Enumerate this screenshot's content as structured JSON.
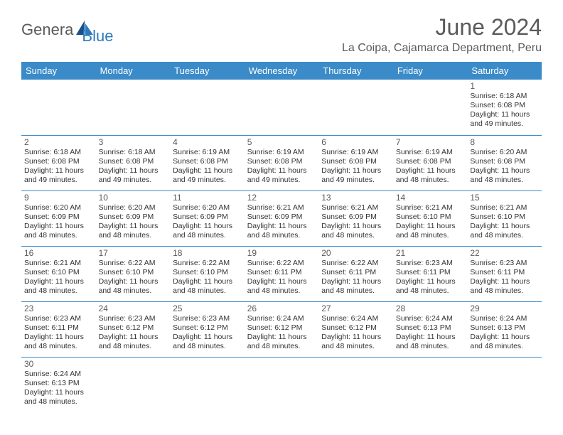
{
  "brand": {
    "text1": "Genera",
    "text2": "Blue"
  },
  "title": "June 2024",
  "location": "La Coipa, Cajamarca Department, Peru",
  "colors": {
    "header_bg": "#3b8bc9",
    "header_text": "#ffffff",
    "body_text": "#333333",
    "brand_grey": "#5a5a5a",
    "brand_blue": "#2b7bbf",
    "cell_border": "#3b8bc9"
  },
  "weekdays": [
    "Sunday",
    "Monday",
    "Tuesday",
    "Wednesday",
    "Thursday",
    "Friday",
    "Saturday"
  ],
  "startOffset": 6,
  "days": [
    {
      "n": "1",
      "sunrise": "6:18 AM",
      "sunset": "6:08 PM",
      "daylight": "11 hours and 49 minutes."
    },
    {
      "n": "2",
      "sunrise": "6:18 AM",
      "sunset": "6:08 PM",
      "daylight": "11 hours and 49 minutes."
    },
    {
      "n": "3",
      "sunrise": "6:18 AM",
      "sunset": "6:08 PM",
      "daylight": "11 hours and 49 minutes."
    },
    {
      "n": "4",
      "sunrise": "6:19 AM",
      "sunset": "6:08 PM",
      "daylight": "11 hours and 49 minutes."
    },
    {
      "n": "5",
      "sunrise": "6:19 AM",
      "sunset": "6:08 PM",
      "daylight": "11 hours and 49 minutes."
    },
    {
      "n": "6",
      "sunrise": "6:19 AM",
      "sunset": "6:08 PM",
      "daylight": "11 hours and 49 minutes."
    },
    {
      "n": "7",
      "sunrise": "6:19 AM",
      "sunset": "6:08 PM",
      "daylight": "11 hours and 48 minutes."
    },
    {
      "n": "8",
      "sunrise": "6:20 AM",
      "sunset": "6:08 PM",
      "daylight": "11 hours and 48 minutes."
    },
    {
      "n": "9",
      "sunrise": "6:20 AM",
      "sunset": "6:09 PM",
      "daylight": "11 hours and 48 minutes."
    },
    {
      "n": "10",
      "sunrise": "6:20 AM",
      "sunset": "6:09 PM",
      "daylight": "11 hours and 48 minutes."
    },
    {
      "n": "11",
      "sunrise": "6:20 AM",
      "sunset": "6:09 PM",
      "daylight": "11 hours and 48 minutes."
    },
    {
      "n": "12",
      "sunrise": "6:21 AM",
      "sunset": "6:09 PM",
      "daylight": "11 hours and 48 minutes."
    },
    {
      "n": "13",
      "sunrise": "6:21 AM",
      "sunset": "6:09 PM",
      "daylight": "11 hours and 48 minutes."
    },
    {
      "n": "14",
      "sunrise": "6:21 AM",
      "sunset": "6:10 PM",
      "daylight": "11 hours and 48 minutes."
    },
    {
      "n": "15",
      "sunrise": "6:21 AM",
      "sunset": "6:10 PM",
      "daylight": "11 hours and 48 minutes."
    },
    {
      "n": "16",
      "sunrise": "6:21 AM",
      "sunset": "6:10 PM",
      "daylight": "11 hours and 48 minutes."
    },
    {
      "n": "17",
      "sunrise": "6:22 AM",
      "sunset": "6:10 PM",
      "daylight": "11 hours and 48 minutes."
    },
    {
      "n": "18",
      "sunrise": "6:22 AM",
      "sunset": "6:10 PM",
      "daylight": "11 hours and 48 minutes."
    },
    {
      "n": "19",
      "sunrise": "6:22 AM",
      "sunset": "6:11 PM",
      "daylight": "11 hours and 48 minutes."
    },
    {
      "n": "20",
      "sunrise": "6:22 AM",
      "sunset": "6:11 PM",
      "daylight": "11 hours and 48 minutes."
    },
    {
      "n": "21",
      "sunrise": "6:23 AM",
      "sunset": "6:11 PM",
      "daylight": "11 hours and 48 minutes."
    },
    {
      "n": "22",
      "sunrise": "6:23 AM",
      "sunset": "6:11 PM",
      "daylight": "11 hours and 48 minutes."
    },
    {
      "n": "23",
      "sunrise": "6:23 AM",
      "sunset": "6:11 PM",
      "daylight": "11 hours and 48 minutes."
    },
    {
      "n": "24",
      "sunrise": "6:23 AM",
      "sunset": "6:12 PM",
      "daylight": "11 hours and 48 minutes."
    },
    {
      "n": "25",
      "sunrise": "6:23 AM",
      "sunset": "6:12 PM",
      "daylight": "11 hours and 48 minutes."
    },
    {
      "n": "26",
      "sunrise": "6:24 AM",
      "sunset": "6:12 PM",
      "daylight": "11 hours and 48 minutes."
    },
    {
      "n": "27",
      "sunrise": "6:24 AM",
      "sunset": "6:12 PM",
      "daylight": "11 hours and 48 minutes."
    },
    {
      "n": "28",
      "sunrise": "6:24 AM",
      "sunset": "6:13 PM",
      "daylight": "11 hours and 48 minutes."
    },
    {
      "n": "29",
      "sunrise": "6:24 AM",
      "sunset": "6:13 PM",
      "daylight": "11 hours and 48 minutes."
    },
    {
      "n": "30",
      "sunrise": "6:24 AM",
      "sunset": "6:13 PM",
      "daylight": "11 hours and 48 minutes."
    }
  ],
  "labels": {
    "sunrise": "Sunrise:",
    "sunset": "Sunset:",
    "daylight": "Daylight:"
  }
}
